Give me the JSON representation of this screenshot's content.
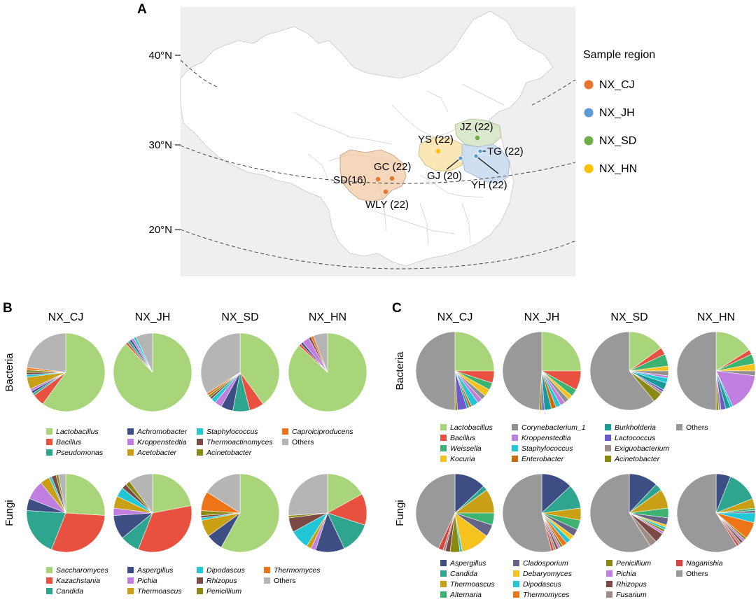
{
  "panels": {
    "a": "A",
    "b": "B",
    "c": "C"
  },
  "map": {
    "legend_title": "Sample region",
    "legend": [
      {
        "name": "NX_CJ",
        "color": "#E8752E"
      },
      {
        "name": "NX_JH",
        "color": "#5B9BD5"
      },
      {
        "name": "NX_SD",
        "color": "#70AD47"
      },
      {
        "name": "NX_HN",
        "color": "#FFC000"
      }
    ],
    "latitudes": [
      "40°N",
      "30°N",
      "20°N"
    ],
    "sites": [
      {
        "label": "SD(16)",
        "group": "NX_CJ"
      },
      {
        "label": "GC (22)",
        "group": "NX_CJ"
      },
      {
        "label": "WLY (22)",
        "group": "NX_CJ"
      },
      {
        "label": "YS (22)",
        "group": "NX_HN"
      },
      {
        "label": "JZ (22)",
        "group": "NX_SD"
      },
      {
        "label": "TG (22)",
        "group": "NX_JH"
      },
      {
        "label": "GJ (20)",
        "group": "NX_JH"
      },
      {
        "label": "YH (22)",
        "group": "NX_JH"
      }
    ]
  },
  "chart_data": [
    {
      "panel": "B",
      "type": "pie",
      "kingdom_labels": [
        "Bacteria",
        "Fungi"
      ],
      "groups": [
        "NX_CJ",
        "NX_JH",
        "NX_SD",
        "NX_HN"
      ],
      "bacteria_legend": [
        {
          "name": "Lactobacillus",
          "color": "#A9D57A"
        },
        {
          "name": "Bacillus",
          "color": "#E8513F"
        },
        {
          "name": "Pseudomonas",
          "color": "#2EA68F"
        },
        {
          "name": "Achromobacter",
          "color": "#3D4E85"
        },
        {
          "name": "Kroppenstedtia",
          "color": "#C07FE0"
        },
        {
          "name": "Acetobacter",
          "color": "#C9A015"
        },
        {
          "name": "Staphylococcus",
          "color": "#22C7D6"
        },
        {
          "name": "Thermoactinomyces",
          "color": "#7B4A45"
        },
        {
          "name": "Acinetobacter",
          "color": "#8A8A12"
        },
        {
          "name": "Caproiciproducens",
          "color": "#EE7418"
        },
        {
          "name": "Others",
          "color": "#B5B5B5"
        }
      ],
      "fungi_legend": [
        {
          "name": "Saccharomyces",
          "color": "#A9D57A"
        },
        {
          "name": "Kazachstania",
          "color": "#E8513F"
        },
        {
          "name": "Candida",
          "color": "#2EA68F"
        },
        {
          "name": "Aspergillus",
          "color": "#3D4E85"
        },
        {
          "name": "Pichia",
          "color": "#C07FE0"
        },
        {
          "name": "Thermoascus",
          "color": "#C9A015"
        },
        {
          "name": "Dipodascus",
          "color": "#22C7D6"
        },
        {
          "name": "Rhizopus",
          "color": "#7B4A45"
        },
        {
          "name": "Penicillium",
          "color": "#8A8A12"
        },
        {
          "name": "Thermomyces",
          "color": "#EE7418"
        },
        {
          "name": "Others",
          "color": "#B5B5B5"
        }
      ],
      "bacteria": [
        [
          60,
          5,
          1,
          1,
          1,
          5,
          1,
          1,
          1,
          1,
          23
        ],
        [
          88,
          1,
          1,
          1,
          1,
          0,
          1,
          0,
          0,
          0,
          7
        ],
        [
          40,
          6,
          7,
          5,
          3,
          0,
          2,
          1,
          1,
          1,
          34
        ],
        [
          87,
          1,
          0,
          1,
          3,
          0,
          0,
          1,
          0,
          1,
          6
        ]
      ],
      "fungi": [
        [
          26,
          30,
          20,
          5,
          8,
          4,
          1,
          2,
          1,
          0,
          3
        ],
        [
          22,
          34,
          8,
          10,
          3,
          5,
          4,
          2,
          2,
          0,
          10
        ],
        [
          58,
          0,
          0,
          7,
          0,
          7,
          1,
          1,
          2,
          8,
          16
        ],
        [
          17,
          13,
          13,
          12,
          2,
          2,
          8,
          6,
          1,
          0,
          26
        ]
      ]
    },
    {
      "panel": "C",
      "type": "pie",
      "kingdom_labels": [
        "Bacteria",
        "Fungi"
      ],
      "groups": [
        "NX_CJ",
        "NX_JH",
        "NX_SD",
        "NX_HN"
      ],
      "bacteria_legend": [
        {
          "name": "Lactobacillus",
          "color": "#A9D57A"
        },
        {
          "name": "Bacillus",
          "color": "#E8513F"
        },
        {
          "name": "Weissella",
          "color": "#3CB371"
        },
        {
          "name": "Kocuria",
          "color": "#F6C21E"
        },
        {
          "name": "Corynebacterium_1",
          "color": "#8F8F8F"
        },
        {
          "name": "Kroppenstedtia",
          "color": "#C07FE0"
        },
        {
          "name": "Staphylococcus",
          "color": "#22C7D6"
        },
        {
          "name": "Enterobacter",
          "color": "#CC6A0E"
        },
        {
          "name": "Burkholderia",
          "color": "#1A9A96"
        },
        {
          "name": "Lactococcus",
          "color": "#6A5ACD"
        },
        {
          "name": "Exiguobacterium",
          "color": "#9E8C85"
        },
        {
          "name": "Acinetobacter",
          "color": "#8A8A12"
        },
        {
          "name": "Others",
          "color": "#999999"
        }
      ],
      "fungi_legend": [
        {
          "name": "Aspergillus",
          "color": "#3D4E85"
        },
        {
          "name": "Candida",
          "color": "#2EA68F"
        },
        {
          "name": "Thermoascus",
          "color": "#C9A015"
        },
        {
          "name": "Alternaria",
          "color": "#3CB371"
        },
        {
          "name": "Cladosporium",
          "color": "#67648A"
        },
        {
          "name": "Debaryomyces",
          "color": "#F6C21E"
        },
        {
          "name": "Dipodascus",
          "color": "#22C7D6"
        },
        {
          "name": "Thermomyces",
          "color": "#EE7418"
        },
        {
          "name": "Penicillium",
          "color": "#8A8A12"
        },
        {
          "name": "Pichia",
          "color": "#C07FE0"
        },
        {
          "name": "Rhizopus",
          "color": "#7B4A45"
        },
        {
          "name": "Fusarium",
          "color": "#9E8C85"
        },
        {
          "name": "Naganishia",
          "color": "#D9423D"
        },
        {
          "name": "Others",
          "color": "#999999"
        }
      ],
      "bacteria": [
        [
          25,
          5,
          3,
          3,
          2,
          2,
          3,
          1,
          1,
          4,
          0,
          1,
          50
        ],
        [
          25,
          8,
          3,
          2,
          2,
          2,
          2,
          2,
          3,
          1,
          0,
          1,
          49
        ],
        [
          15,
          3,
          5,
          2,
          2,
          1,
          2,
          0,
          3,
          1,
          1,
          4,
          61
        ],
        [
          16,
          2,
          4,
          3,
          2,
          16,
          1,
          0,
          2,
          2,
          1,
          1,
          50
        ]
      ],
      "fungi": [
        [
          13,
          2,
          10,
          5,
          5,
          12,
          1,
          0,
          4,
          0,
          2,
          1,
          2,
          43
        ],
        [
          13,
          10,
          5,
          4,
          3,
          2,
          2,
          2,
          1,
          1,
          1,
          1,
          1,
          54
        ],
        [
          12,
          3,
          8,
          4,
          3,
          1,
          1,
          0,
          1,
          1,
          4,
          3,
          0,
          59
        ],
        [
          6,
          13,
          4,
          1,
          1,
          0,
          4,
          7,
          1,
          1,
          1,
          1,
          1,
          59
        ]
      ]
    }
  ]
}
